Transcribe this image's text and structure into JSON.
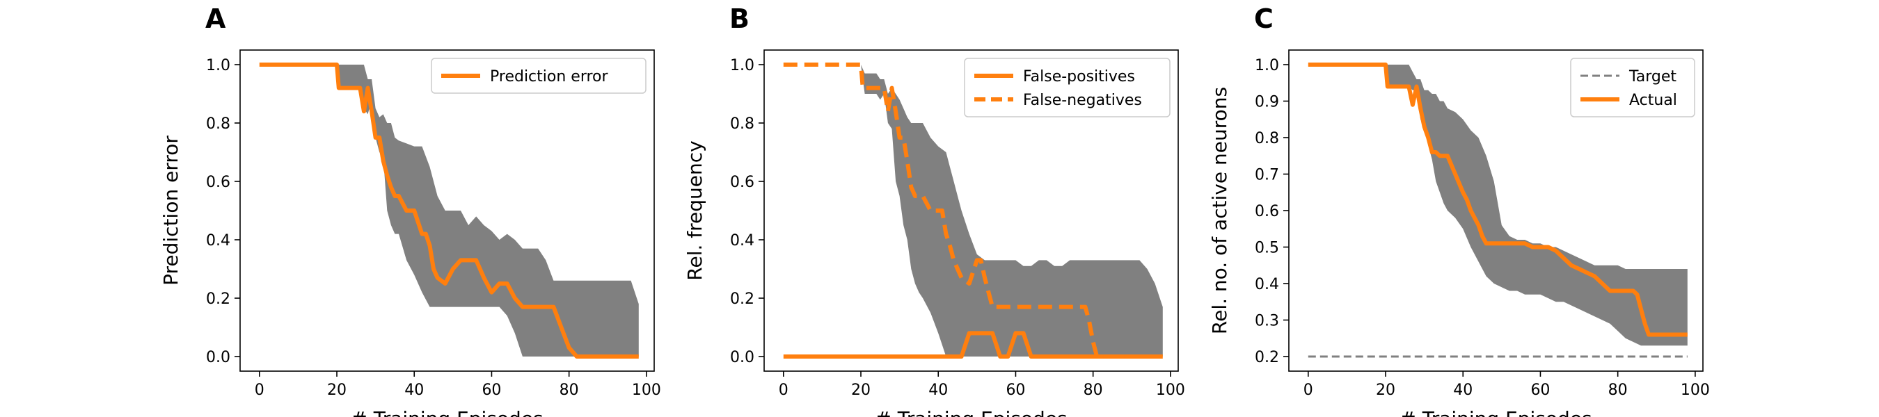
{
  "colors": {
    "line": "#ff7f0e",
    "band": "#808080",
    "target": "#808080"
  },
  "chart_data": [
    {
      "panel": "A",
      "type": "line",
      "xlabel": "# Training Episodes",
      "ylabel": "Prediction error",
      "xlim": [
        -5,
        102
      ],
      "ylim": [
        -0.05,
        1.05
      ],
      "xticks": [
        0,
        20,
        40,
        60,
        80,
        100
      ],
      "yticks": [
        "0.0",
        "0.2",
        "0.4",
        "0.6",
        "0.8",
        "1.0"
      ],
      "ytick_values": [
        0,
        0.2,
        0.4,
        0.6,
        0.8,
        1.0
      ],
      "legend": {
        "position": "top-right",
        "entries": [
          "Prediction error"
        ]
      },
      "band": {
        "x": [
          0,
          20,
          21,
          26,
          27,
          28,
          29,
          30,
          31,
          32,
          33,
          34,
          35,
          36,
          38,
          40,
          42,
          44,
          46,
          48,
          50,
          52,
          54,
          56,
          58,
          60,
          62,
          64,
          66,
          68,
          70,
          72,
          74,
          76,
          78,
          80,
          82,
          84,
          86,
          88,
          90,
          92,
          94,
          96,
          98
        ],
        "upper": [
          1.0,
          1.0,
          1.0,
          1.0,
          1.0,
          0.95,
          0.95,
          0.85,
          0.82,
          0.83,
          0.8,
          0.8,
          0.75,
          0.74,
          0.73,
          0.72,
          0.72,
          0.65,
          0.55,
          0.5,
          0.5,
          0.5,
          0.45,
          0.48,
          0.45,
          0.43,
          0.4,
          0.42,
          0.4,
          0.37,
          0.37,
          0.37,
          0.33,
          0.26,
          0.26,
          0.26,
          0.26,
          0.26,
          0.26,
          0.26,
          0.26,
          0.26,
          0.26,
          0.26,
          0.18
        ],
        "lower": [
          1.0,
          1.0,
          0.92,
          0.92,
          0.85,
          0.83,
          0.88,
          0.75,
          0.7,
          0.68,
          0.5,
          0.45,
          0.42,
          0.42,
          0.33,
          0.28,
          0.22,
          0.17,
          0.17,
          0.17,
          0.17,
          0.17,
          0.17,
          0.17,
          0.17,
          0.17,
          0.17,
          0.14,
          0.08,
          0.0,
          0.0,
          0.0,
          0.0,
          0.0,
          0.0,
          0.0,
          0.0,
          0.0,
          0.0,
          0.0,
          0.0,
          0.0,
          0.0,
          0.0,
          0.0
        ]
      },
      "series": [
        {
          "name": "Prediction error",
          "style": "solid",
          "x": [
            0,
            20,
            20.5,
            26,
            27,
            28,
            29,
            30,
            31,
            32,
            33,
            34,
            35,
            36,
            38,
            40,
            42,
            43,
            44,
            45,
            46,
            48,
            50,
            52,
            54,
            56,
            58,
            60,
            62,
            64,
            66,
            68,
            70,
            72,
            74,
            76,
            78,
            80,
            82,
            84,
            86,
            88,
            90,
            92,
            94,
            96,
            98
          ],
          "y": [
            1.0,
            1.0,
            0.92,
            0.92,
            0.84,
            0.92,
            0.84,
            0.75,
            0.75,
            0.67,
            0.62,
            0.58,
            0.55,
            0.55,
            0.5,
            0.5,
            0.42,
            0.42,
            0.38,
            0.3,
            0.27,
            0.25,
            0.3,
            0.33,
            0.33,
            0.33,
            0.27,
            0.22,
            0.25,
            0.25,
            0.2,
            0.17,
            0.17,
            0.17,
            0.17,
            0.17,
            0.1,
            0.03,
            0.0,
            0.0,
            0.0,
            0.0,
            0.0,
            0.0,
            0.0,
            0.0,
            0.0
          ]
        }
      ]
    },
    {
      "panel": "B",
      "type": "line",
      "xlabel": "# Training Episodes",
      "ylabel": "Rel. frequency",
      "xlim": [
        -5,
        102
      ],
      "ylim": [
        -0.05,
        1.05
      ],
      "xticks": [
        0,
        20,
        40,
        60,
        80,
        100
      ],
      "yticks": [
        "0.0",
        "0.2",
        "0.4",
        "0.6",
        "0.8",
        "1.0"
      ],
      "ytick_values": [
        0,
        0.2,
        0.4,
        0.6,
        0.8,
        1.0
      ],
      "legend": {
        "position": "top-right",
        "entries": [
          "False-positives",
          "False-negatives"
        ]
      },
      "band": {
        "x": [
          0,
          20,
          21,
          24,
          25,
          26,
          27,
          28,
          29,
          30,
          31,
          32,
          33,
          34,
          35,
          36,
          38,
          40,
          42,
          43,
          44,
          45,
          46,
          48,
          50,
          52,
          54,
          56,
          58,
          60,
          62,
          64,
          66,
          68,
          70,
          72,
          74,
          76,
          78,
          80,
          82,
          84,
          86,
          88,
          90,
          92,
          94,
          96,
          98
        ],
        "upper": [
          1.0,
          1.0,
          0.97,
          0.97,
          0.95,
          0.95,
          0.9,
          0.92,
          0.9,
          0.88,
          0.85,
          0.82,
          0.8,
          0.8,
          0.8,
          0.8,
          0.75,
          0.72,
          0.7,
          0.65,
          0.6,
          0.55,
          0.5,
          0.42,
          0.35,
          0.33,
          0.33,
          0.33,
          0.33,
          0.33,
          0.31,
          0.31,
          0.33,
          0.33,
          0.31,
          0.31,
          0.33,
          0.33,
          0.33,
          0.33,
          0.33,
          0.33,
          0.33,
          0.33,
          0.33,
          0.33,
          0.3,
          0.25,
          0.17
        ],
        "lower": [
          1.0,
          1.0,
          0.9,
          0.9,
          0.88,
          0.9,
          0.8,
          0.78,
          0.6,
          0.55,
          0.45,
          0.4,
          0.3,
          0.25,
          0.22,
          0.2,
          0.15,
          0.08,
          0.0,
          0.0,
          0.0,
          0.0,
          0.0,
          0.0,
          0.0,
          0.0,
          0.0,
          0.0,
          0.0,
          0.0,
          0.0,
          0.0,
          0.0,
          0.0,
          0.0,
          0.0,
          0.0,
          0.0,
          0.0,
          0.0,
          0.0,
          0.0,
          0.0,
          0.0,
          0.0,
          0.0,
          0.0,
          0.0,
          0.0
        ]
      },
      "series": [
        {
          "name": "False-positives",
          "style": "solid",
          "x": [
            0,
            44,
            45,
            46,
            48,
            50,
            52,
            54,
            56,
            58,
            60,
            62,
            64,
            66,
            68,
            70,
            72,
            74,
            76,
            78,
            80,
            82,
            84,
            86,
            88,
            90,
            92,
            94,
            96,
            98
          ],
          "y": [
            0.0,
            0.0,
            0.0,
            0.0,
            0.08,
            0.08,
            0.08,
            0.08,
            0.0,
            0.0,
            0.08,
            0.08,
            0.0,
            0.0,
            0.0,
            0.0,
            0.0,
            0.0,
            0.0,
            0.0,
            0.0,
            0.0,
            0.0,
            0.0,
            0.0,
            0.0,
            0.0,
            0.0,
            0.0,
            0.0
          ]
        },
        {
          "name": "False-negatives",
          "style": "dashed",
          "x": [
            0,
            20,
            20.5,
            26,
            27,
            28,
            29,
            30,
            31,
            32,
            33,
            34,
            35,
            36,
            38,
            40,
            41,
            42,
            43,
            44,
            45,
            46,
            48,
            50,
            51,
            52,
            53,
            54,
            56,
            58,
            60,
            62,
            64,
            66,
            68,
            70,
            72,
            74,
            76,
            78,
            79,
            80,
            81,
            82,
            84,
            86,
            88,
            90,
            92,
            94,
            96,
            98
          ],
          "y": [
            1.0,
            1.0,
            0.92,
            0.92,
            0.84,
            0.92,
            0.84,
            0.75,
            0.75,
            0.67,
            0.58,
            0.55,
            0.55,
            0.55,
            0.5,
            0.5,
            0.5,
            0.42,
            0.38,
            0.33,
            0.3,
            0.27,
            0.25,
            0.33,
            0.33,
            0.27,
            0.22,
            0.17,
            0.17,
            0.17,
            0.17,
            0.17,
            0.17,
            0.17,
            0.17,
            0.17,
            0.17,
            0.17,
            0.17,
            0.17,
            0.12,
            0.05,
            0.0,
            0.0,
            0.0,
            0.0,
            0.0,
            0.0,
            0.0,
            0.0,
            0.0,
            0.0
          ]
        }
      ]
    },
    {
      "panel": "C",
      "type": "line",
      "xlabel": "# Training Episodes",
      "ylabel": "Rel. no. of active neurons",
      "xlim": [
        -5,
        102
      ],
      "ylim": [
        0.16,
        1.04
      ],
      "xticks": [
        0,
        20,
        40,
        60,
        80,
        100
      ],
      "yticks": [
        "0.2",
        "0.3",
        "0.4",
        "0.5",
        "0.6",
        "0.7",
        "0.8",
        "0.9",
        "1.0"
      ],
      "ytick_values": [
        0.2,
        0.3,
        0.4,
        0.5,
        0.6,
        0.7,
        0.8,
        0.9,
        1.0
      ],
      "legend": {
        "position": "top-right",
        "entries": [
          "Target",
          "Actual"
        ]
      },
      "band": {
        "x": [
          0,
          20,
          21,
          26,
          27,
          28,
          29,
          30,
          31,
          32,
          33,
          34,
          35,
          36,
          38,
          40,
          42,
          44,
          46,
          48,
          50,
          52,
          54,
          56,
          58,
          60,
          62,
          64,
          66,
          68,
          70,
          72,
          74,
          76,
          78,
          80,
          82,
          84,
          86,
          88,
          90,
          92,
          94,
          96,
          98
        ],
        "upper": [
          1.0,
          1.0,
          1.0,
          1.0,
          0.98,
          0.96,
          0.96,
          0.93,
          0.93,
          0.92,
          0.92,
          0.9,
          0.9,
          0.88,
          0.87,
          0.85,
          0.82,
          0.8,
          0.75,
          0.68,
          0.56,
          0.53,
          0.52,
          0.52,
          0.51,
          0.51,
          0.5,
          0.5,
          0.49,
          0.48,
          0.47,
          0.46,
          0.45,
          0.45,
          0.45,
          0.45,
          0.44,
          0.44,
          0.44,
          0.44,
          0.44,
          0.44,
          0.44,
          0.44,
          0.44
        ],
        "lower": [
          1.0,
          1.0,
          0.94,
          0.94,
          0.93,
          0.93,
          0.85,
          0.83,
          0.78,
          0.74,
          0.68,
          0.65,
          0.62,
          0.6,
          0.58,
          0.55,
          0.5,
          0.46,
          0.42,
          0.4,
          0.39,
          0.38,
          0.38,
          0.37,
          0.37,
          0.37,
          0.36,
          0.35,
          0.35,
          0.34,
          0.33,
          0.32,
          0.31,
          0.3,
          0.29,
          0.27,
          0.25,
          0.24,
          0.23,
          0.23,
          0.23,
          0.23,
          0.23,
          0.23,
          0.23
        ]
      },
      "series": [
        {
          "name": "Target",
          "style": "dashed-thin",
          "x": [
            0,
            98
          ],
          "y": [
            0.2,
            0.2
          ]
        },
        {
          "name": "Actual",
          "style": "solid",
          "x": [
            0,
            20,
            20.5,
            26,
            27,
            28,
            29,
            30,
            31,
            32,
            33,
            34,
            35,
            36,
            38,
            40,
            41,
            42,
            43,
            44,
            45,
            46,
            47,
            48,
            50,
            52,
            54,
            56,
            58,
            60,
            62,
            64,
            66,
            68,
            70,
            72,
            74,
            76,
            78,
            80,
            82,
            84,
            85,
            86,
            87,
            88,
            90,
            92,
            94,
            96,
            98
          ],
          "y": [
            1.0,
            1.0,
            0.94,
            0.94,
            0.89,
            0.94,
            0.88,
            0.83,
            0.8,
            0.76,
            0.76,
            0.75,
            0.75,
            0.75,
            0.7,
            0.65,
            0.63,
            0.6,
            0.58,
            0.56,
            0.53,
            0.51,
            0.51,
            0.51,
            0.51,
            0.51,
            0.51,
            0.51,
            0.5,
            0.5,
            0.5,
            0.49,
            0.47,
            0.45,
            0.44,
            0.43,
            0.42,
            0.4,
            0.38,
            0.38,
            0.38,
            0.38,
            0.37,
            0.33,
            0.29,
            0.26,
            0.26,
            0.26,
            0.26,
            0.26,
            0.26
          ]
        }
      ]
    }
  ]
}
